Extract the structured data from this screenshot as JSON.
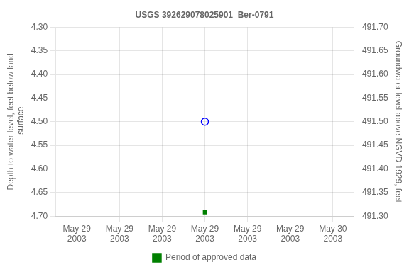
{
  "chart_data": {
    "type": "scatter",
    "title": "USGS 392629078025901  Ber-0791",
    "ylabel": "Depth to water level, feet below land\n surface",
    "y2label": "Groundwater level above NGVD 1929, feet",
    "categories": [
      "May 29\n2003",
      "May 29\n2003",
      "May 29\n2003",
      "May 29\n2003",
      "May 29\n2003",
      "May 29\n2003",
      "May 30\n2003"
    ],
    "series": [
      {
        "color": "blue",
        "marker": "circle_open",
        "values": [
          null,
          null,
          null,
          4.5,
          null,
          null,
          null
        ]
      },
      {
        "name": "Period of approved data",
        "color": "#008000",
        "marker": "square",
        "values": [
          null,
          null,
          null,
          4.692,
          null,
          null,
          null
        ]
      }
    ],
    "ylim": [
      4.7,
      4.3
    ],
    "yticks": [
      {
        "value": 4.3,
        "label": "4.30"
      },
      4.35,
      {
        "value": 4.4,
        "label": "4.40"
      },
      4.45,
      {
        "value": 4.5,
        "label": "4.50"
      },
      4.55,
      {
        "value": 4.6,
        "label": "4.60"
      },
      4.65,
      {
        "value": 4.7,
        "label": "4.70"
      }
    ],
    "y2lim": [
      491.3,
      491.7
    ],
    "y2ticks": [
      {
        "value": 491.7,
        "label": "491.70"
      },
      491.65,
      {
        "value": 491.6,
        "label": "491.60"
      },
      491.55,
      {
        "value": 491.5,
        "label": "491.50"
      },
      491.45,
      {
        "value": 491.4,
        "label": "491.40"
      },
      491.35,
      {
        "value": 491.3,
        "label": "491.30"
      }
    ],
    "grid": true,
    "legend": "bottom"
  }
}
